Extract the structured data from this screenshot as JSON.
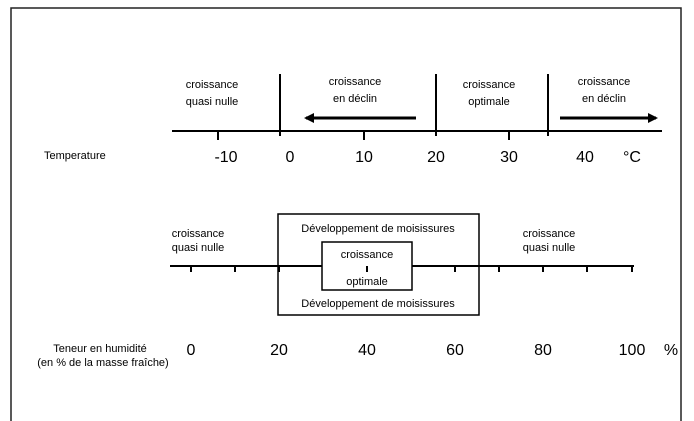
{
  "temperature": {
    "axis_label": "Temperature",
    "unit": "°C",
    "ticks": [
      "-10",
      "0",
      "10",
      "20",
      "30",
      "40"
    ],
    "zones": [
      {
        "line1": "croissance",
        "line2": "quasi nulle"
      },
      {
        "line1": "croissance",
        "line2": "en déclin"
      },
      {
        "line1": "croissance",
        "line2": "optimale"
      },
      {
        "line1": "croissance",
        "line2": "en déclin"
      }
    ]
  },
  "humidity": {
    "axis_label_line1": "Teneur en humidité",
    "axis_label_line2": "(en % de la masse fraîche)",
    "unit": "%",
    "ticks": [
      "0",
      "20",
      "40",
      "60",
      "80",
      "100"
    ],
    "left_zone": {
      "line1": "croissance",
      "line2": "quasi nulle"
    },
    "right_zone": {
      "line1": "croissance",
      "line2": "quasi nulle"
    },
    "mold_top": "Développement de moisissures",
    "mold_bottom": "Développement de moisissures",
    "optimal_top": "croissance",
    "optimal_bottom": "optimale"
  },
  "colors": {
    "line": "#000000",
    "background": "#ffffff",
    "border": "#222222"
  }
}
